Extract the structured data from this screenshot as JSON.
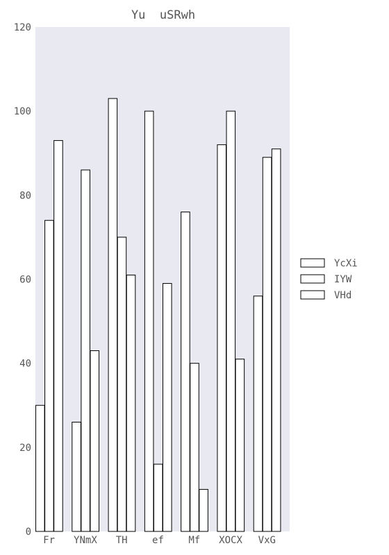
{
  "chart_data": {
    "type": "bar",
    "title": "Yu  uSRwh",
    "xlabel": "",
    "ylabel": "",
    "categories": [
      "Fr",
      "YNmX",
      "TH",
      "ef",
      "Mf",
      "XOCX",
      "VxG"
    ],
    "series": [
      {
        "name": "YcXi",
        "values": [
          30,
          26,
          103,
          100,
          76,
          92,
          56
        ]
      },
      {
        "name": "IYW",
        "values": [
          74,
          86,
          70,
          16,
          40,
          100,
          89
        ]
      },
      {
        "name": "VHd",
        "values": [
          93,
          43,
          61,
          59,
          10,
          41,
          91
        ]
      }
    ],
    "ylim": [
      0,
      120
    ],
    "yticks": [
      0,
      20,
      40,
      60,
      80,
      100,
      120
    ],
    "grid": false,
    "legend_position": "right",
    "colors": {
      "plot_background": "#e9e9f1",
      "bar_fill": "#ffffff",
      "bar_stroke": "#000000",
      "text": "#555555"
    }
  }
}
